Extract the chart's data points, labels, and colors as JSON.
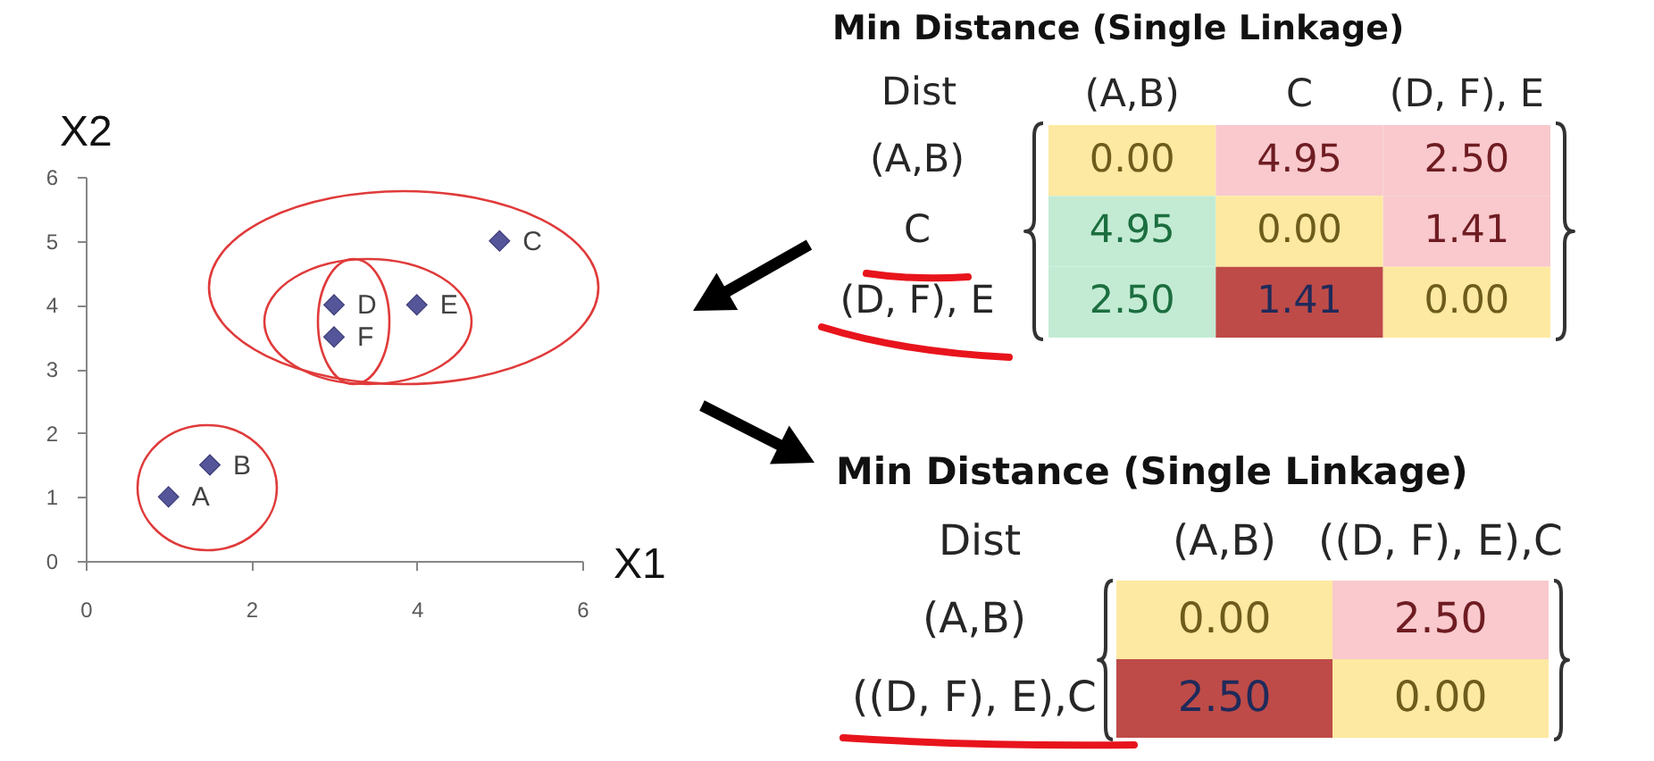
{
  "chart_data": [
    {
      "type": "scatter",
      "xlabel": "X1",
      "ylabel": "X2",
      "x": [
        1,
        1.5,
        5,
        3,
        4,
        3
      ],
      "values": [
        1,
        1.5,
        5,
        4,
        4,
        3.5
      ],
      "color": "#55559a",
      "marker": "diamond",
      "xlim": [
        0,
        6
      ],
      "ylim": [
        0,
        6
      ],
      "xticks": [
        0,
        2,
        4,
        6
      ],
      "yticks": [
        0,
        1,
        2,
        3,
        4,
        5,
        6
      ],
      "annotations": [
        {
          "text": "A",
          "x": 1,
          "y": 1
        },
        {
          "text": "B",
          "x": 1.5,
          "y": 1.5
        },
        {
          "text": "C",
          "x": 5,
          "y": 5
        },
        {
          "text": "D",
          "x": 3,
          "y": 4
        },
        {
          "text": "E",
          "x": 4,
          "y": 4
        },
        {
          "text": "F",
          "x": 3,
          "y": 3.5
        }
      ]
    },
    {
      "type": "heatmap",
      "title": "Min Distance (Single Linkage)",
      "categories": [
        "(A,B)",
        "C",
        "(D, F), E"
      ],
      "y_categories": [
        "(A,B)",
        "C",
        "(D, F), E"
      ],
      "cells": [
        [
          0,
          4.95,
          2.5
        ],
        [
          4.95,
          0,
          1.41
        ],
        [
          2.5,
          1.41,
          0
        ]
      ],
      "cell_labels": [
        [
          "0.00",
          "4.95",
          "2.50"
        ],
        [
          "4.95",
          "0.00",
          "1.41"
        ],
        [
          "2.50",
          "1.41",
          "0.00"
        ]
      ],
      "colors": [
        [
          "#fde9a1",
          "#f9c9cd",
          "#f9c9cd"
        ],
        [
          "#c3ebd4",
          "#fde9a1",
          "#f9c9cd"
        ],
        [
          "#c3ebd4",
          "#be4b48",
          "#fde9a1"
        ]
      ],
      "annotations": [
        "Dist"
      ]
    },
    {
      "type": "heatmap",
      "title": "Min Distance (Single Linkage)",
      "categories": [
        "(A,B)",
        "((D, F), E),C"
      ],
      "y_categories": [
        "(A,B)",
        "((D, F), E),C"
      ],
      "cells": [
        [
          0,
          2.5
        ],
        [
          2.5,
          0
        ]
      ],
      "cell_labels": [
        [
          "0.00",
          "2.50"
        ],
        [
          "2.50",
          "0.00"
        ]
      ],
      "colors": [
        [
          "#fde9a1",
          "#f9c9cd"
        ],
        [
          "#be4b48",
          "#fde9a1"
        ]
      ],
      "annotations": [
        "Dist"
      ]
    }
  ]
}
